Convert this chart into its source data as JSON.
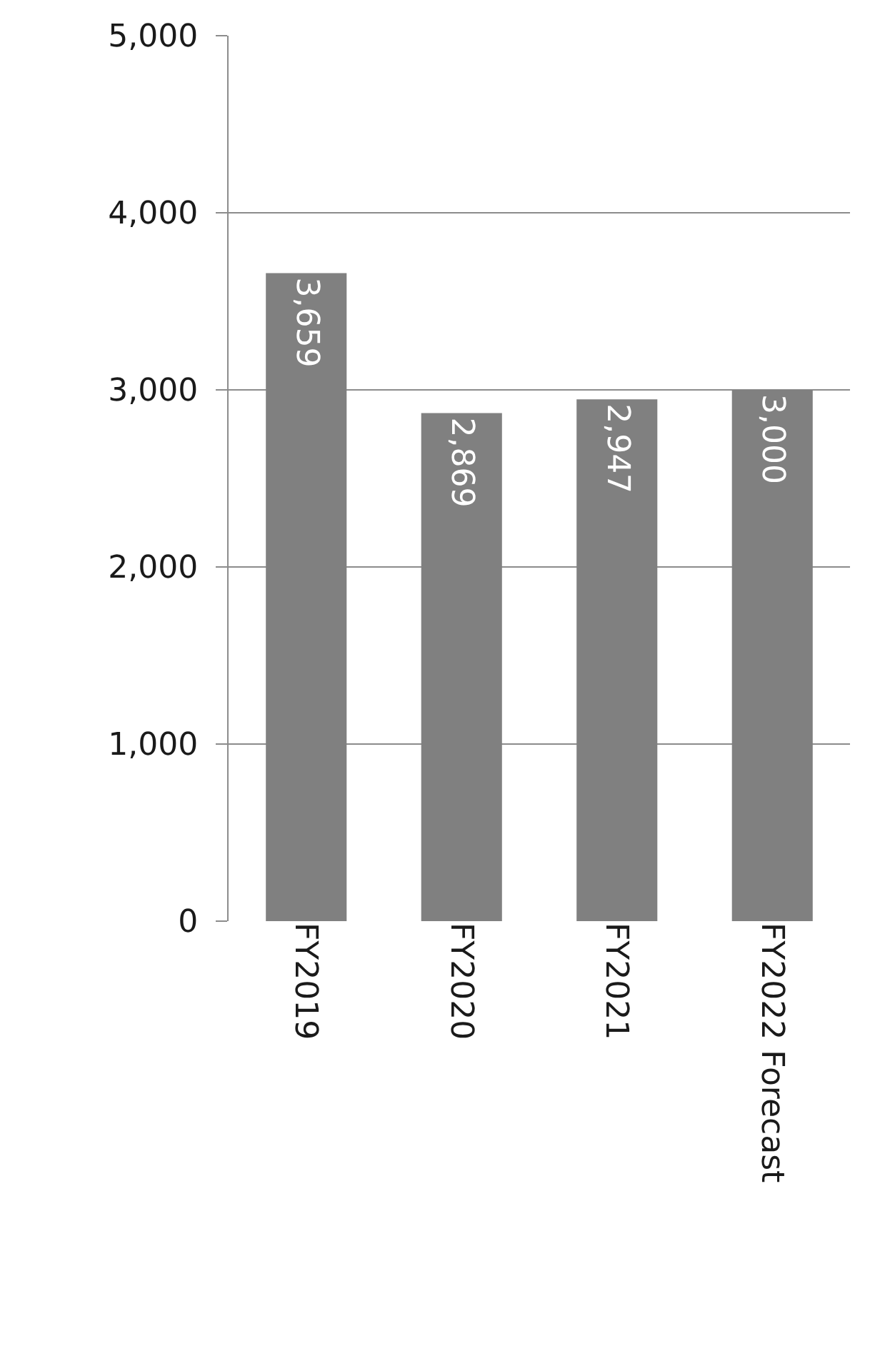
{
  "chart_data": {
    "type": "bar",
    "categories": [
      "FY2019",
      "FY2020",
      "FY2021",
      "FY2022 Forecast"
    ],
    "values": [
      3659,
      2869,
      2947,
      3000
    ],
    "color": "#808080",
    "ylim": [
      0,
      5000
    ],
    "yticks": [
      {
        "value": 0,
        "label": "0"
      },
      {
        "value": 1000,
        "label": "1,000"
      },
      {
        "value": 2000,
        "label": "2,000"
      },
      {
        "value": 3000,
        "label": "3,000"
      },
      {
        "value": 4000,
        "label": "4,000"
      },
      {
        "value": 5000,
        "label": "5,000"
      }
    ],
    "grid": "y",
    "value_labels": [
      "3,659",
      "2,869",
      "2,947",
      "3,000"
    ]
  }
}
